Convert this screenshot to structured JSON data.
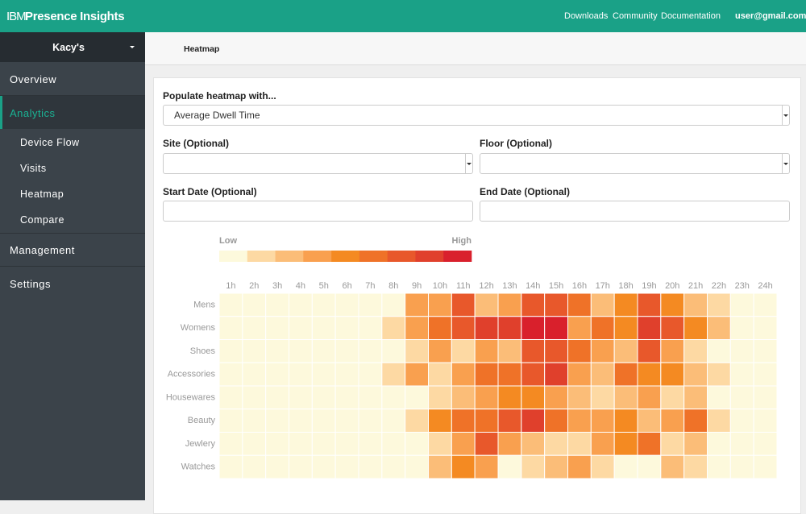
{
  "header": {
    "brand_prefix": "IBM",
    "brand": "Presence Insights",
    "links": [
      "Downloads",
      "Community",
      "Documentation"
    ],
    "user": "user@gmail.com"
  },
  "sidebar": {
    "site": "Kacy's",
    "sections": [
      "Overview",
      "Analytics",
      "Management",
      "Settings"
    ],
    "analytics_items": [
      "Device Flow",
      "Visits",
      "Heatmap",
      "Compare"
    ]
  },
  "breadcrumb": "Heatmap",
  "form": {
    "populate_label": "Populate heatmap with...",
    "populate_value": "Average Dwell Time",
    "site_label": "Site (Optional)",
    "floor_label": "Floor (Optional)",
    "start_label": "Start Date (Optional)",
    "end_label": "End Date (Optional)"
  },
  "chart_data": {
    "type": "heatmap",
    "legend_low": "Low",
    "legend_high": "High",
    "colors": [
      "#fdf9dc",
      "#fdd9a3",
      "#fbbd78",
      "#f9a04f",
      "#f48a22",
      "#ef7228",
      "#e8582b",
      "#e0402c",
      "#d9202c"
    ],
    "x": [
      "1h",
      "2h",
      "3h",
      "4h",
      "5h",
      "6h",
      "7h",
      "8h",
      "9h",
      "10h",
      "11h",
      "12h",
      "13h",
      "14h",
      "15h",
      "16h",
      "17h",
      "18h",
      "19h",
      "20h",
      "21h",
      "22h",
      "23h",
      "24h"
    ],
    "y": [
      "Mens",
      "Womens",
      "Shoes",
      "Accessories",
      "Housewares",
      "Beauty",
      "Jewlery",
      "Watches"
    ],
    "values": [
      [
        0,
        0,
        0,
        0,
        0,
        0,
        0,
        0,
        3,
        3,
        6,
        2,
        3,
        6,
        6,
        5,
        2,
        4,
        6,
        4,
        2,
        1,
        0,
        0
      ],
      [
        0,
        0,
        0,
        0,
        0,
        0,
        0,
        1,
        3,
        5,
        6,
        7,
        7,
        8,
        8,
        3,
        5,
        4,
        7,
        6,
        4,
        2,
        0,
        0
      ],
      [
        0,
        0,
        0,
        0,
        0,
        0,
        0,
        0,
        1,
        3,
        1,
        3,
        2,
        6,
        6,
        5,
        3,
        2,
        6,
        3,
        1,
        0,
        0,
        0
      ],
      [
        0,
        0,
        0,
        0,
        0,
        0,
        0,
        1,
        3,
        1,
        3,
        5,
        5,
        6,
        7,
        3,
        2,
        5,
        4,
        4,
        2,
        1,
        0,
        0
      ],
      [
        0,
        0,
        0,
        0,
        0,
        0,
        0,
        0,
        0,
        1,
        2,
        3,
        4,
        4,
        3,
        2,
        1,
        2,
        3,
        1,
        2,
        0,
        0,
        0
      ],
      [
        0,
        0,
        0,
        0,
        0,
        0,
        0,
        0,
        1,
        4,
        5,
        5,
        6,
        7,
        5,
        3,
        3,
        4,
        2,
        3,
        5,
        1,
        0,
        0
      ],
      [
        0,
        0,
        0,
        0,
        0,
        0,
        0,
        0,
        0,
        1,
        3,
        6,
        3,
        2,
        1,
        1,
        3,
        4,
        5,
        1,
        2,
        0,
        0,
        0
      ],
      [
        0,
        0,
        0,
        0,
        0,
        0,
        0,
        0,
        0,
        2,
        4,
        3,
        0,
        1,
        2,
        3,
        1,
        0,
        0,
        2,
        1,
        0,
        0,
        0
      ]
    ]
  }
}
